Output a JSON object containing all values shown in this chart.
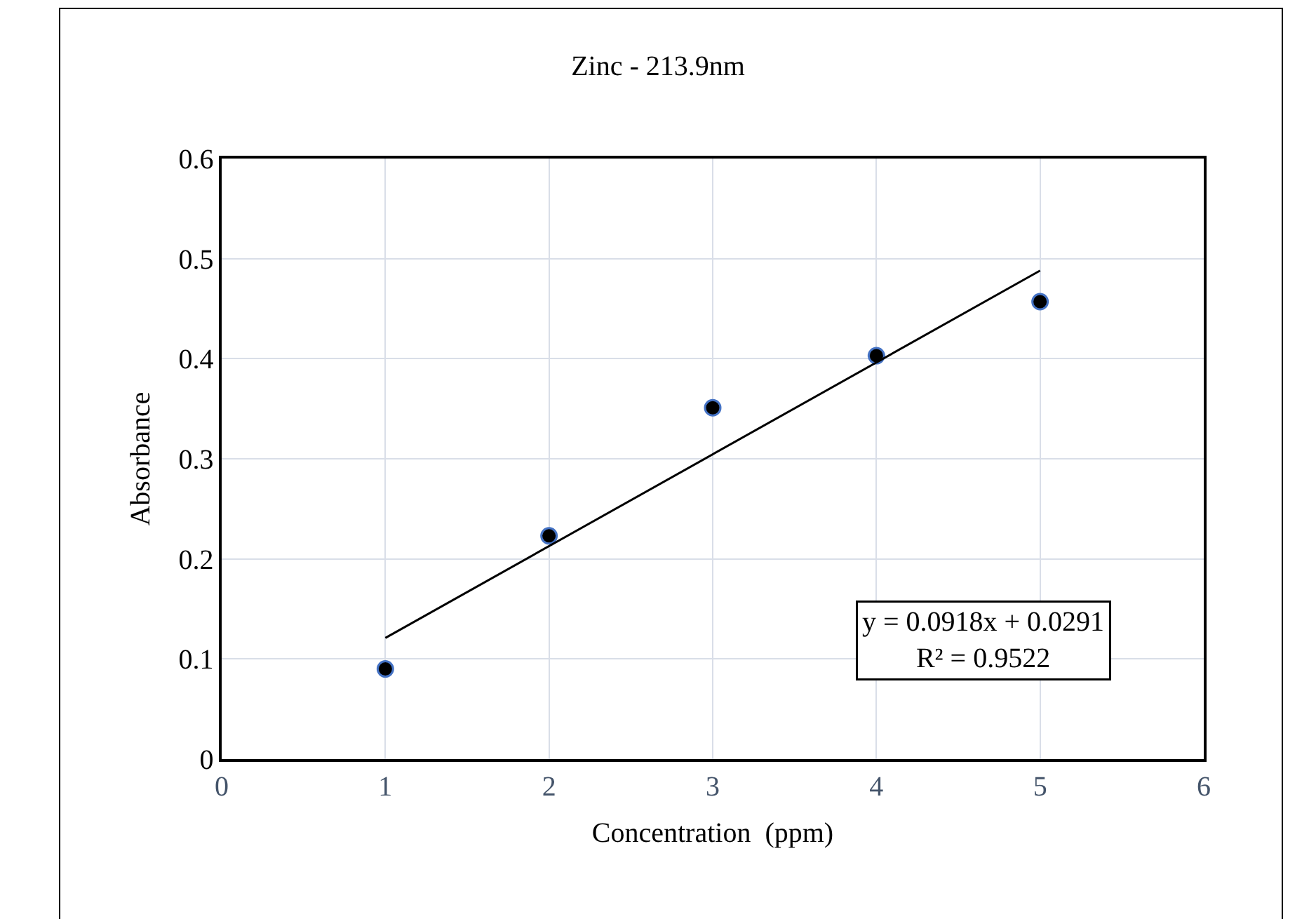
{
  "chart_data": {
    "type": "scatter",
    "title": "Zinc - 213.9nm",
    "xlabel": "Concentration  (ppm)",
    "ylabel": "Absorbance",
    "x": [
      1,
      2,
      3,
      4,
      5
    ],
    "series": [
      {
        "color": "#000000",
        "values": [
          0.09,
          0.223,
          0.351,
          0.403,
          0.457
        ],
        "marker": "circle"
      },
      {
        "type": "line",
        "color": "#000000",
        "x": [
          1,
          5
        ],
        "values": [
          0.121,
          0.488
        ],
        "marker": "none",
        "line_style": "solid"
      }
    ],
    "xlim": [
      0,
      6
    ],
    "xticks": [
      0,
      1,
      2,
      3,
      4,
      5,
      6
    ],
    "ylim": [
      0,
      0.6
    ],
    "yticks": [
      0,
      0.1,
      0.2,
      0.3,
      0.4,
      0.5,
      0.6
    ],
    "grid": true,
    "legend": false,
    "annotations": [
      "y = 0.0918x + 0.0291\nR² = 0.9522"
    ]
  }
}
